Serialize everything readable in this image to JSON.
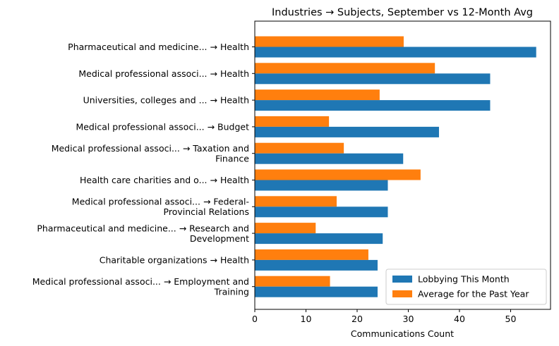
{
  "chart_data": {
    "type": "bar",
    "orientation": "horizontal",
    "title": "Industries → Subjects, September vs 12-Month Avg",
    "xlabel": "Communications Count",
    "ylabel": "",
    "xlim": [
      0,
      57.8
    ],
    "xticks": [
      0,
      10,
      20,
      30,
      40,
      50
    ],
    "grid": false,
    "legend_position": "bottom-right",
    "categories": [
      [
        "Pharmaceutical and medicine... → Health"
      ],
      [
        "Medical professional associ... → Health"
      ],
      [
        "Universities, colleges and ... → Health"
      ],
      [
        "Medical professional associ... → Budget"
      ],
      [
        "Medical professional associ... → Taxation and",
        "Finance"
      ],
      [
        "Health care charities and o... → Health"
      ],
      [
        "Medical professional associ... → Federal-",
        "Provincial Relations"
      ],
      [
        "Pharmaceutical and medicine... → Research and",
        "Development"
      ],
      [
        "Charitable organizations → Health"
      ],
      [
        "Medical professional associ... → Employment and",
        "Training"
      ]
    ],
    "series": [
      {
        "name": "Lobbying This Month",
        "color": "#1f77b4",
        "values": [
          55,
          46,
          46,
          36,
          29,
          26,
          26,
          25,
          24,
          24
        ]
      },
      {
        "name": "Average for the Past Year",
        "color": "#ff7f0e",
        "values": [
          29.1,
          35.2,
          24.4,
          14.5,
          17.4,
          32.4,
          16.0,
          11.9,
          22.2,
          14.7
        ]
      }
    ]
  }
}
